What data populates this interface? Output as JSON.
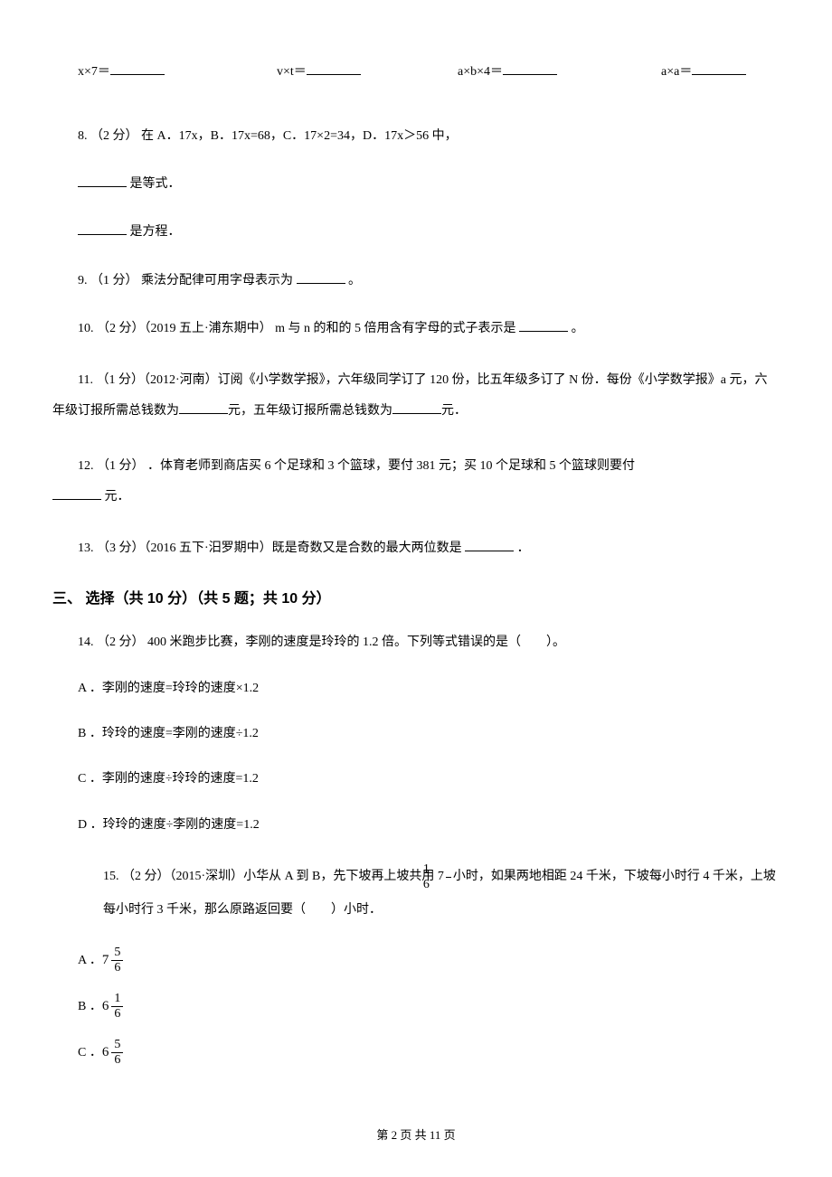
{
  "equations": {
    "eq1": "x×7＝",
    "eq2": "v×t＝",
    "eq3": "a×b×4＝",
    "eq4": "a×a＝"
  },
  "q8": {
    "main": "8. （2 分） 在 A．17x，B．17x=68，C．17×2=34，D．17x＞56 中，",
    "line1_suffix": "是等式．",
    "line2_suffix": "是方程．"
  },
  "q9": {
    "prefix": "9. （1 分） 乘法分配律可用字母表示为",
    "suffix": "。"
  },
  "q10": {
    "prefix": "10. （2 分）（2019 五上·浦东期中） m 与 n 的和的 5 倍用含有字母的式子表示是",
    "suffix": "。"
  },
  "q11": {
    "prefix": "11. （1 分）（2012·河南）订阅《小学数学报》，六年级同学订了 120 份，比五年级多订了 N 份．每份《小学数学报》a 元，六年级订报所需总钱数为",
    "mid": "元，五年级订报所需总钱数为",
    "suffix": "元．"
  },
  "q12": {
    "prefix": "12. （1 分） ．体育老师到商店买 6 个足球和 3 个篮球，要付 381 元；买 10 个足球和 5 个篮球则要付",
    "suffix": "    元．"
  },
  "q13": {
    "prefix": "13. （3 分）（2016 五下·汨罗期中）既是奇数又是合数的最大两位数是",
    "suffix": "．"
  },
  "section3": "三、 选择（共 10 分）（共 5 题；共 10 分）",
  "q14": {
    "main": "14. （2 分） 400 米跑步比赛，李刚的速度是玲玲的 1.2 倍。下列等式错误的是（　　）。",
    "a": "A ．李刚的速度=玲玲的速度×1.2",
    "b": "B ．玲玲的速度=李刚的速度÷1.2",
    "c": "C ．李刚的速度÷玲玲的速度=1.2",
    "d": "D ．玲玲的速度÷李刚的速度=1.2"
  },
  "q15": {
    "prefix": "　　15. （2 分）（2015·深圳）小华从 A 到 B，先下坡再上坡共用 7",
    "frac_num": "1",
    "frac_den": "6",
    "mid": "小时，如果两地相距 24 千米，下坡每小时",
    "line2": "行 4 千米，上坡每小时行 3 千米，那么原路返回要（　　）小时．",
    "a_label": "A ．",
    "a_whole": "7",
    "a_num": "5",
    "a_den": "6",
    "b_label": "B ．",
    "b_whole": "6",
    "b_num": "1",
    "b_den": "6",
    "c_label": "C ．",
    "c_whole": "6",
    "c_num": "5",
    "c_den": "6"
  },
  "footer": "第 2 页 共 11 页"
}
